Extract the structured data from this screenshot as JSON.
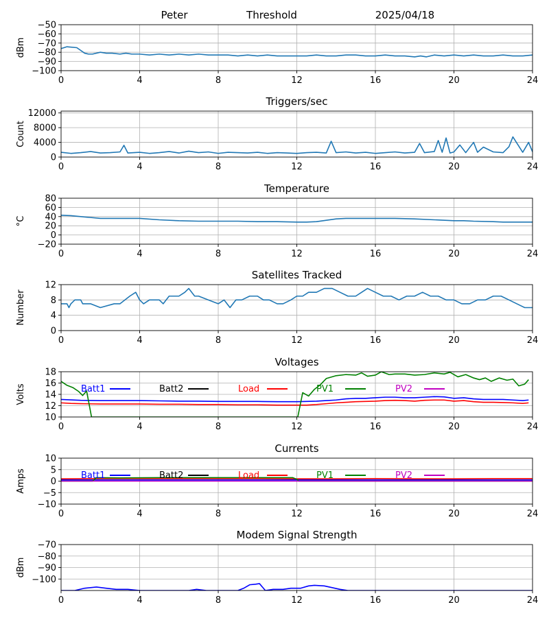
{
  "header": {
    "station": "Peter",
    "mode": "Threshold",
    "date": "2025/04/18"
  },
  "chart_data": [
    {
      "type": "line",
      "title": "",
      "xlabel": "",
      "ylabel": "dBm",
      "xlim": [
        0,
        24
      ],
      "ylim": [
        -100,
        -50
      ],
      "xticks": [
        0,
        4,
        8,
        12,
        16,
        20,
        24
      ],
      "yticks": [
        -100,
        -90,
        -80,
        -70,
        -60,
        -50
      ],
      "grid": true,
      "series": [
        {
          "color": "#1f77b4",
          "x": [
            0,
            0.3,
            0.8,
            1.0,
            1.2,
            1.4,
            1.6,
            2.0,
            2.3,
            2.6,
            3.0,
            3.3,
            3.6,
            4.0,
            4.5,
            5.0,
            5.5,
            6.0,
            6.5,
            7.0,
            7.5,
            8.0,
            8.5,
            9.0,
            9.5,
            10.0,
            10.5,
            11.0,
            11.5,
            12.0,
            12.5,
            13.0,
            13.5,
            14.0,
            14.5,
            15.0,
            15.5,
            16.0,
            16.5,
            17.0,
            17.5,
            18.0,
            18.3,
            18.6,
            19.0,
            19.5,
            20.0,
            20.5,
            21.0,
            21.5,
            22.0,
            22.5,
            23.0,
            23.5,
            24.0
          ],
          "y": [
            -76,
            -74,
            -75,
            -78,
            -81,
            -82,
            -82,
            -80,
            -81,
            -81,
            -82,
            -81,
            -82,
            -82,
            -83,
            -82,
            -83,
            -82,
            -83,
            -82,
            -83,
            -83,
            -83,
            -84,
            -83,
            -84,
            -83,
            -84,
            -84,
            -84,
            -84,
            -83,
            -84,
            -84,
            -83,
            -83,
            -84,
            -84,
            -83,
            -84,
            -84,
            -85,
            -84,
            -85,
            -83,
            -84,
            -83,
            -84,
            -83,
            -84,
            -84,
            -83,
            -84,
            -84,
            -83
          ]
        }
      ]
    },
    {
      "type": "line",
      "title": "Triggers/sec",
      "xlabel": "",
      "ylabel": "Count",
      "xlim": [
        0,
        24
      ],
      "ylim": [
        0,
        12500
      ],
      "xticks": [
        0,
        4,
        8,
        12,
        16,
        20,
        24
      ],
      "yticks": [
        0,
        4000,
        8000,
        12000
      ],
      "grid": true,
      "series": [
        {
          "color": "#1f77b4",
          "x": [
            0,
            0.5,
            1.0,
            1.5,
            2.0,
            2.5,
            3.0,
            3.2,
            3.4,
            4.0,
            4.5,
            5.0,
            5.5,
            6.0,
            6.5,
            7.0,
            7.5,
            8.0,
            8.5,
            9.0,
            9.5,
            10.0,
            10.5,
            11.0,
            11.5,
            12.0,
            12.5,
            13.0,
            13.5,
            13.75,
            14.0,
            14.5,
            15.0,
            15.5,
            16.0,
            16.5,
            17.0,
            17.5,
            18.0,
            18.25,
            18.5,
            19.0,
            19.2,
            19.4,
            19.6,
            19.8,
            20.0,
            20.3,
            20.6,
            21.0,
            21.2,
            21.5,
            22.0,
            22.5,
            22.8,
            23.0,
            23.5,
            23.8,
            24.0
          ],
          "y": [
            1300,
            1000,
            1200,
            1500,
            1100,
            1200,
            1400,
            3200,
            1100,
            1300,
            1000,
            1200,
            1500,
            1100,
            1600,
            1200,
            1400,
            1000,
            1300,
            1200,
            1100,
            1300,
            1000,
            1200,
            1100,
            1000,
            1200,
            1300,
            1100,
            4300,
            1200,
            1400,
            1100,
            1300,
            1000,
            1200,
            1400,
            1100,
            1300,
            3700,
            1200,
            1500,
            4500,
            1300,
            5200,
            1100,
            1400,
            3300,
            1200,
            4000,
            1300,
            2700,
            1400,
            1200,
            2800,
            5500,
            1300,
            4000,
            1400
          ]
        }
      ]
    },
    {
      "type": "line",
      "title": "Temperature",
      "xlabel": "",
      "ylabel": "°C",
      "xlim": [
        0,
        24
      ],
      "ylim": [
        -20,
        80
      ],
      "xticks": [
        0,
        4,
        8,
        12,
        16,
        20,
        24
      ],
      "yticks": [
        -20,
        0,
        20,
        40,
        60,
        80
      ],
      "grid": true,
      "series": [
        {
          "color": "#1f77b4",
          "x": [
            0,
            0.5,
            1.0,
            1.5,
            2.0,
            3.0,
            4.0,
            5.0,
            6.0,
            7.0,
            8.0,
            9.0,
            10.0,
            11.0,
            12.0,
            12.5,
            13.0,
            13.5,
            14.0,
            14.5,
            15.0,
            16.0,
            17.0,
            18.0,
            19.0,
            20.0,
            20.5,
            21.0,
            22.0,
            22.5,
            23.0,
            24.0
          ],
          "y": [
            43,
            42,
            40,
            38,
            36,
            36,
            36,
            33,
            31,
            30,
            30,
            30,
            29,
            29,
            28,
            28,
            29,
            32,
            35,
            36,
            36,
            36,
            36,
            35,
            33,
            31,
            31,
            30,
            29,
            28,
            28,
            28
          ]
        }
      ]
    },
    {
      "type": "line",
      "title": "Satellites Tracked",
      "xlabel": "",
      "ylabel": "Number",
      "xlim": [
        0,
        24
      ],
      "ylim": [
        0,
        12
      ],
      "xticks": [
        0,
        4,
        8,
        12,
        16,
        20,
        24
      ],
      "yticks": [
        0,
        4,
        8,
        12
      ],
      "grid": true,
      "series": [
        {
          "color": "#1f77b4",
          "x": [
            0,
            0.3,
            0.4,
            0.5,
            0.7,
            1.0,
            1.1,
            1.5,
            2.0,
            2.7,
            3.0,
            3.5,
            3.8,
            4.0,
            4.2,
            4.5,
            5.0,
            5.2,
            5.5,
            6.0,
            6.3,
            6.5,
            6.8,
            7.0,
            7.5,
            8.0,
            8.3,
            8.6,
            8.9,
            9.2,
            9.6,
            10.0,
            10.3,
            10.6,
            11.0,
            11.3,
            11.7,
            12.0,
            12.3,
            12.6,
            13.0,
            13.4,
            13.8,
            14.2,
            14.6,
            15.0,
            15.3,
            15.6,
            16.0,
            16.4,
            16.8,
            17.2,
            17.6,
            18.0,
            18.4,
            18.8,
            19.2,
            19.6,
            20.0,
            20.4,
            20.8,
            21.2,
            21.6,
            22.0,
            22.4,
            22.8,
            23.2,
            23.6,
            24.0
          ],
          "y": [
            7,
            7,
            6,
            7,
            8,
            8,
            7,
            7,
            6,
            7,
            7,
            9,
            10,
            8,
            7,
            8,
            8,
            7,
            9,
            9,
            10,
            11,
            9,
            9,
            8,
            7,
            8,
            6,
            8,
            8,
            9,
            9,
            8,
            8,
            7,
            7,
            8,
            9,
            9,
            10,
            10,
            11,
            11,
            10,
            9,
            9,
            10,
            11,
            10,
            9,
            9,
            8,
            9,
            9,
            10,
            9,
            9,
            8,
            8,
            7,
            7,
            8,
            8,
            9,
            9,
            8,
            7,
            6,
            6
          ]
        }
      ]
    },
    {
      "type": "line",
      "title": "Voltages",
      "xlabel": "",
      "ylabel": "Volts",
      "xlim": [
        0,
        24
      ],
      "ylim": [
        10,
        18
      ],
      "xticks": [
        0,
        4,
        8,
        12,
        16,
        20,
        24
      ],
      "yticks": [
        10,
        12,
        14,
        16,
        18
      ],
      "grid": true,
      "legend": "top (inside, single row)",
      "series": [
        {
          "name": "Batt1",
          "color": "#0000ff",
          "x": [
            0,
            1,
            2,
            3,
            4,
            5,
            6,
            7,
            8,
            9,
            10,
            11,
            12,
            12.5,
            13,
            13.5,
            14,
            14.5,
            15,
            15.5,
            16,
            16.5,
            17,
            17.5,
            18,
            18.5,
            19,
            19.5,
            20,
            20.5,
            21,
            21.5,
            22,
            22.5,
            23,
            23.5,
            23.8
          ],
          "y": [
            13.1,
            12.95,
            12.9,
            12.9,
            12.9,
            12.85,
            12.8,
            12.8,
            12.75,
            12.75,
            12.75,
            12.7,
            12.7,
            12.75,
            12.8,
            12.9,
            13.0,
            13.2,
            13.3,
            13.3,
            13.4,
            13.5,
            13.5,
            13.4,
            13.4,
            13.5,
            13.6,
            13.55,
            13.3,
            13.4,
            13.2,
            13.1,
            13.1,
            13.1,
            13.0,
            12.9,
            13.0
          ]
        },
        {
          "name": "Load",
          "color": "#ff0000",
          "x": [
            0,
            0.5,
            1,
            2,
            3,
            4,
            5,
            6,
            7,
            8,
            9,
            10,
            11,
            12,
            12.5,
            13,
            13.5,
            14,
            14.5,
            15,
            15.5,
            16,
            16.5,
            17,
            17.5,
            18,
            18.5,
            19,
            19.5,
            20,
            20.5,
            21,
            21.5,
            22,
            22.5,
            23,
            23.5,
            23.8
          ],
          "y": [
            12.5,
            12.4,
            12.35,
            12.3,
            12.3,
            12.3,
            12.25,
            12.25,
            12.2,
            12.2,
            12.15,
            12.15,
            12.1,
            12.1,
            12.1,
            12.2,
            12.35,
            12.5,
            12.6,
            12.7,
            12.75,
            12.8,
            12.9,
            12.95,
            12.9,
            12.8,
            12.95,
            13.0,
            13.0,
            12.8,
            12.9,
            12.7,
            12.6,
            12.6,
            12.55,
            12.5,
            12.4,
            12.5
          ]
        },
        {
          "name": "PV1",
          "color": "#008000",
          "x": [
            0,
            0.3,
            0.6,
            0.9,
            1.1,
            1.3,
            1.55,
            12.05,
            12.3,
            12.6,
            12.9,
            13.2,
            13.5,
            14.0,
            14.5,
            15.0,
            15.3,
            15.6,
            16.0,
            16.3,
            16.7,
            17.0,
            17.5,
            18.0,
            18.5,
            19.0,
            19.5,
            19.8,
            20.2,
            20.6,
            21.0,
            21.3,
            21.6,
            21.9,
            22.3,
            22.7,
            23.0,
            23.3,
            23.6,
            23.8
          ],
          "y": [
            16.3,
            15.6,
            15.2,
            14.5,
            13.8,
            14.6,
            10.0,
            10.0,
            14.3,
            13.7,
            14.9,
            15.7,
            16.8,
            17.3,
            17.5,
            17.4,
            17.8,
            17.2,
            17.4,
            18.0,
            17.5,
            17.6,
            17.6,
            17.4,
            17.5,
            17.8,
            17.6,
            17.9,
            17.1,
            17.5,
            16.9,
            16.6,
            16.9,
            16.3,
            16.9,
            16.5,
            16.7,
            15.5,
            15.8,
            16.6
          ]
        }
      ],
      "legend_entries": [
        {
          "name": "Batt1",
          "color": "#0000ff"
        },
        {
          "name": "Batt2",
          "color": "#000000"
        },
        {
          "name": "Load",
          "color": "#ff0000"
        },
        {
          "name": "PV1",
          "color": "#008000"
        },
        {
          "name": "PV2",
          "color": "#c000c0"
        }
      ]
    },
    {
      "type": "line",
      "title": "Currents",
      "xlabel": "",
      "ylabel": "Amps",
      "xlim": [
        0,
        24
      ],
      "ylim": [
        -10,
        10
      ],
      "xticks": [
        0,
        4,
        8,
        12,
        16,
        20,
        24
      ],
      "yticks": [
        -10,
        -5,
        0,
        5,
        10
      ],
      "grid": true,
      "legend": "top (inside, single row)",
      "series": [
        {
          "name": "Batt1",
          "color": "#0000ff",
          "x": [
            0,
            24
          ],
          "y": [
            0.5,
            0.5
          ]
        },
        {
          "name": "Load",
          "color": "#ff0000",
          "x": [
            0,
            2,
            4,
            6,
            8,
            10,
            12,
            14,
            16,
            18,
            20,
            22,
            24
          ],
          "y": [
            1.0,
            1.1,
            1.1,
            1.1,
            1.1,
            1.1,
            1.0,
            1.0,
            1.1,
            1.0,
            1.0,
            1.1,
            1.1
          ]
        },
        {
          "name": "PV1",
          "color": "#008000",
          "x": [
            0,
            1.6,
            1.8,
            3,
            5,
            7,
            9,
            11,
            11.8,
            12.0,
            12.1,
            24
          ],
          "y": [
            0,
            0,
            1.5,
            1.4,
            1.5,
            1.5,
            1.5,
            1.5,
            1.5,
            0.8,
            0,
            0
          ]
        },
        {
          "name": "PV2",
          "color": "#c000c0",
          "x": [
            0,
            24
          ],
          "y": [
            0,
            0
          ]
        }
      ],
      "legend_entries": [
        {
          "name": "Batt1",
          "color": "#0000ff"
        },
        {
          "name": "Batt2",
          "color": "#000000"
        },
        {
          "name": "Load",
          "color": "#ff0000"
        },
        {
          "name": "PV1",
          "color": "#008000"
        },
        {
          "name": "PV2",
          "color": "#c000c0"
        }
      ]
    },
    {
      "type": "line",
      "title": "Modem Signal Strength",
      "xlabel": "",
      "ylabel": "dBm",
      "xlim": [
        0,
        24
      ],
      "ylim": [
        -110,
        -70
      ],
      "xticks": [
        0,
        4,
        8,
        12,
        16,
        20,
        24
      ],
      "yticks": [
        -100,
        -90,
        -80,
        -70
      ],
      "grid": true,
      "series": [
        {
          "name": "",
          "color": "#0000ff",
          "x": [
            0,
            0.7,
            1.2,
            1.8,
            2.3,
            2.8,
            3.4,
            4.0,
            5.0,
            6.0,
            6.5,
            6.9,
            7.4,
            8.0,
            8.5,
            9.0,
            9.3,
            9.6,
            9.9,
            10.1,
            10.4,
            10.8,
            11.3,
            11.7,
            12.2,
            12.6,
            12.9,
            13.4,
            13.8,
            14.2,
            14.6,
            15.0,
            15.5,
            16.0,
            17.0,
            18.0,
            19.0,
            20.0,
            20.5,
            21.0,
            21.5,
            22.0,
            22.5,
            23.0,
            23.5,
            24.0
          ],
          "y": [
            -110,
            -110,
            -108,
            -107,
            -108,
            -109,
            -109,
            -110,
            -110,
            -110,
            -110,
            -109,
            -110,
            -110,
            -110,
            -110,
            -108,
            -105,
            -104.5,
            -104,
            -110,
            -109,
            -109,
            -108,
            -108,
            -106,
            -105.5,
            -106,
            -107.5,
            -109,
            -110,
            -110,
            -110,
            -110,
            -110,
            -110,
            -110,
            -110,
            -110,
            -110,
            -110,
            -110,
            -110,
            -110,
            -110,
            -110
          ]
        }
      ]
    }
  ]
}
